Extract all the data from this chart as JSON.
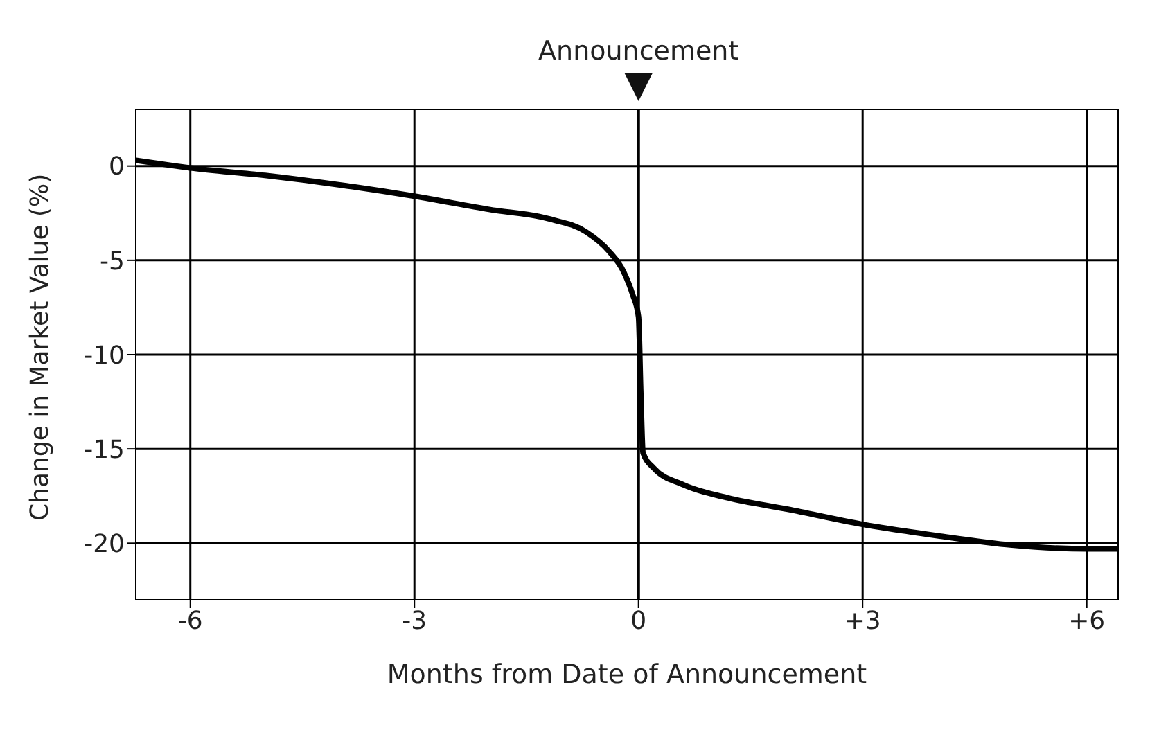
{
  "chart_data": {
    "type": "line",
    "xlabel": "Months from Date of Announcement",
    "ylabel": "Change in Market Value (%)",
    "ref_lines": [
      {
        "axis": "x",
        "value": 0,
        "label": "Announcement",
        "color": "#000000"
      }
    ],
    "x": [
      -6.73,
      -6,
      -5,
      -4,
      -3,
      -2,
      -1.2,
      -0.7,
      -0.4,
      -0.2,
      -0.08,
      0,
      0.03,
      0.06,
      0.2,
      0.6,
      1.2,
      2,
      3,
      4,
      5,
      6,
      6.42
    ],
    "series": [
      {
        "color": "#000000",
        "values": [
          0.3,
          -0.1,
          -0.5,
          -1.0,
          -1.6,
          -2.3,
          -2.8,
          -3.5,
          -4.5,
          -5.6,
          -6.8,
          -8,
          -12,
          -15.2,
          -16,
          -16.9,
          -17.6,
          -18.2,
          -19,
          -19.6,
          -20.1,
          -20.3,
          -20.3
        ]
      }
    ],
    "xlim": [
      -6.73,
      6.42
    ],
    "xticks": [
      -6,
      -3,
      0,
      {
        "value": 3,
        "label": "+3"
      },
      {
        "value": 6,
        "label": "+6"
      }
    ],
    "ylim": [
      -23,
      3
    ],
    "yticks": [
      -20,
      -15,
      -10,
      -5,
      0
    ],
    "grid": true,
    "marker": "none",
    "line_style": "solid"
  }
}
